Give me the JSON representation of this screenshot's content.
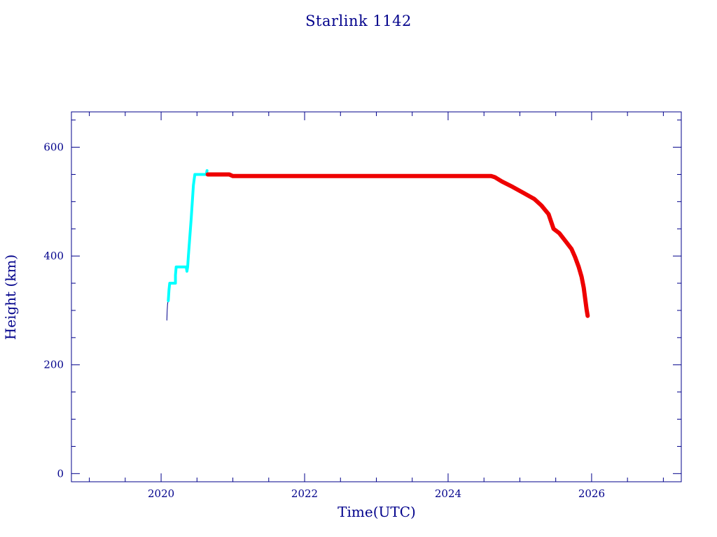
{
  "chart_data": {
    "type": "line",
    "title": "Starlink 1142",
    "xlabel": "Time(UTC)",
    "ylabel": "Height (km)",
    "xlim": [
      2018.75,
      2027.25
    ],
    "ylim": [
      -15,
      665
    ],
    "x_ticks": [
      2020,
      2022,
      2024,
      2026
    ],
    "x_tick_labels": [
      "2020",
      "2022",
      "2024",
      "2026"
    ],
    "y_ticks": [
      0,
      200,
      400,
      600
    ],
    "y_tick_labels": [
      "0",
      "200",
      "400",
      "600"
    ],
    "x_minor_step": 0.5,
    "y_minor_step": 50,
    "grid": false,
    "colors": {
      "axis": "#00008b",
      "text": "#00008b",
      "series_initial": "#00008b",
      "series_raising": "#00ffff",
      "series_operational": "#ee0000"
    },
    "series": [
      {
        "color": "#00008b",
        "width": 1,
        "points": [
          [
            2020.08,
            282
          ],
          [
            2020.085,
            300
          ],
          [
            2020.09,
            312
          ],
          [
            2020.1,
            318
          ]
        ]
      },
      {
        "color": "#00ffff",
        "width": 4,
        "points": [
          [
            2020.1,
            318
          ],
          [
            2020.11,
            338
          ],
          [
            2020.12,
            350
          ],
          [
            2020.2,
            350
          ],
          [
            2020.2,
            365
          ],
          [
            2020.21,
            380
          ],
          [
            2020.35,
            380
          ],
          [
            2020.36,
            372
          ],
          [
            2020.37,
            380
          ],
          [
            2020.38,
            400
          ],
          [
            2020.42,
            470
          ],
          [
            2020.45,
            530
          ],
          [
            2020.47,
            550
          ],
          [
            2020.63,
            550
          ],
          [
            2020.64,
            557
          ]
        ]
      },
      {
        "color": "#ee0000",
        "width": 6,
        "points": [
          [
            2020.65,
            550
          ],
          [
            2020.95,
            550
          ],
          [
            2021.0,
            547
          ],
          [
            2021.5,
            547
          ],
          [
            2022.0,
            547
          ],
          [
            2022.5,
            547
          ],
          [
            2023.0,
            547
          ],
          [
            2023.5,
            547
          ],
          [
            2024.0,
            547
          ],
          [
            2024.6,
            547
          ],
          [
            2024.65,
            545
          ],
          [
            2024.75,
            537
          ],
          [
            2024.9,
            527
          ],
          [
            2025.05,
            516
          ],
          [
            2025.2,
            505
          ],
          [
            2025.3,
            493
          ],
          [
            2025.4,
            477
          ],
          [
            2025.47,
            450
          ],
          [
            2025.55,
            442
          ],
          [
            2025.65,
            425
          ],
          [
            2025.72,
            413
          ],
          [
            2025.77,
            398
          ],
          [
            2025.82,
            380
          ],
          [
            2025.86,
            362
          ],
          [
            2025.89,
            342
          ],
          [
            2025.91,
            322
          ],
          [
            2025.93,
            302
          ],
          [
            2025.945,
            290
          ]
        ]
      }
    ]
  }
}
